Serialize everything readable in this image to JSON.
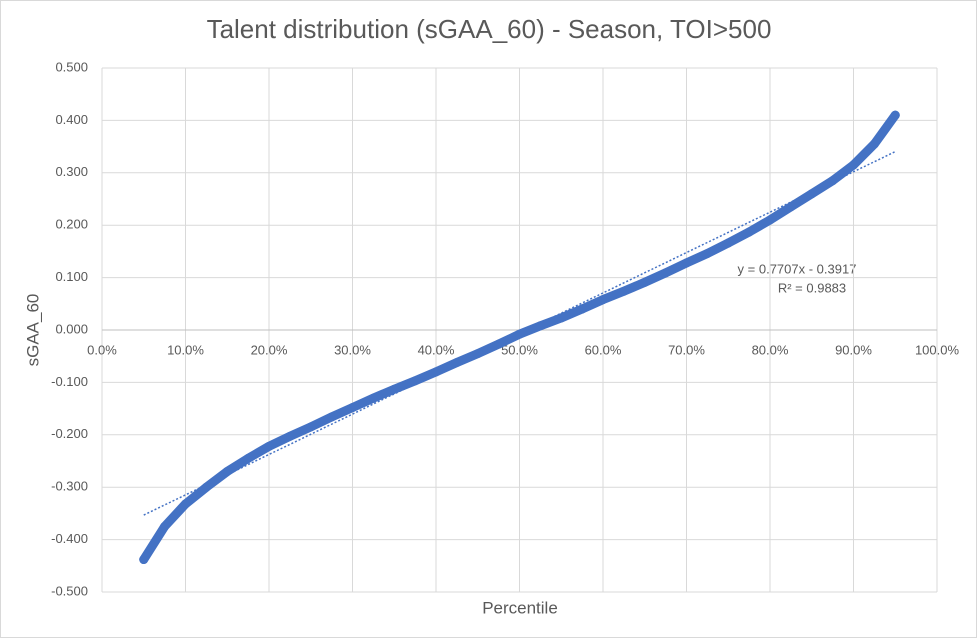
{
  "chart_data": {
    "type": "scatter",
    "title": "Talent distribution (sGAA_60) - Season, TOI>500",
    "x_label": "Percentile",
    "y_label": "sGAA_60",
    "x": [
      0.05,
      0.075,
      0.1,
      0.125,
      0.15,
      0.175,
      0.2,
      0.225,
      0.25,
      0.275,
      0.3,
      0.325,
      0.35,
      0.375,
      0.4,
      0.425,
      0.45,
      0.475,
      0.5,
      0.525,
      0.55,
      0.575,
      0.6,
      0.625,
      0.65,
      0.675,
      0.7,
      0.725,
      0.75,
      0.775,
      0.8,
      0.825,
      0.85,
      0.875,
      0.9,
      0.925,
      0.95
    ],
    "values": [
      -0.438,
      -0.375,
      -0.332,
      -0.3,
      -0.27,
      -0.245,
      -0.222,
      -0.203,
      -0.185,
      -0.166,
      -0.148,
      -0.13,
      -0.113,
      -0.097,
      -0.08,
      -0.062,
      -0.045,
      -0.027,
      -0.008,
      0.008,
      0.023,
      0.04,
      0.058,
      0.074,
      0.091,
      0.109,
      0.128,
      0.146,
      0.166,
      0.187,
      0.21,
      0.235,
      0.26,
      0.285,
      0.315,
      0.355,
      0.41
    ],
    "color": "#4472c4",
    "xlim": [
      0,
      1
    ],
    "xticks": [
      {
        "value": 0,
        "label": "0.0%"
      },
      {
        "value": 0.1,
        "label": "10.0%"
      },
      {
        "value": 0.2,
        "label": "20.0%"
      },
      {
        "value": 0.3,
        "label": "30.0%"
      },
      {
        "value": 0.4,
        "label": "40.0%"
      },
      {
        "value": 0.5,
        "label": "50.0%"
      },
      {
        "value": 0.6,
        "label": "60.0%"
      },
      {
        "value": 0.7,
        "label": "70.0%"
      },
      {
        "value": 0.8,
        "label": "80.0%"
      },
      {
        "value": 0.9,
        "label": "90.0%"
      },
      {
        "value": 1,
        "label": "100.0%"
      }
    ],
    "ylim": [
      -0.5,
      0.5
    ],
    "yticks": [
      {
        "value": -0.5,
        "label": "-0.500"
      },
      {
        "value": -0.4,
        "label": "-0.400"
      },
      {
        "value": -0.3,
        "label": "-0.300"
      },
      {
        "value": -0.2,
        "label": "-0.200"
      },
      {
        "value": -0.1,
        "label": "-0.100"
      },
      {
        "value": 0,
        "label": "0.000"
      },
      {
        "value": 0.1,
        "label": "0.100"
      },
      {
        "value": 0.2,
        "label": "0.200"
      },
      {
        "value": 0.3,
        "label": "0.300"
      },
      {
        "value": 0.4,
        "label": "0.400"
      },
      {
        "value": 0.5,
        "label": "0.500"
      }
    ],
    "grid": true,
    "trendline": {
      "equation": "y = 0.7707x - 0.3917",
      "r_squared": "R² = 0.9883",
      "slope": 0.7707,
      "intercept": -0.3917
    }
  }
}
